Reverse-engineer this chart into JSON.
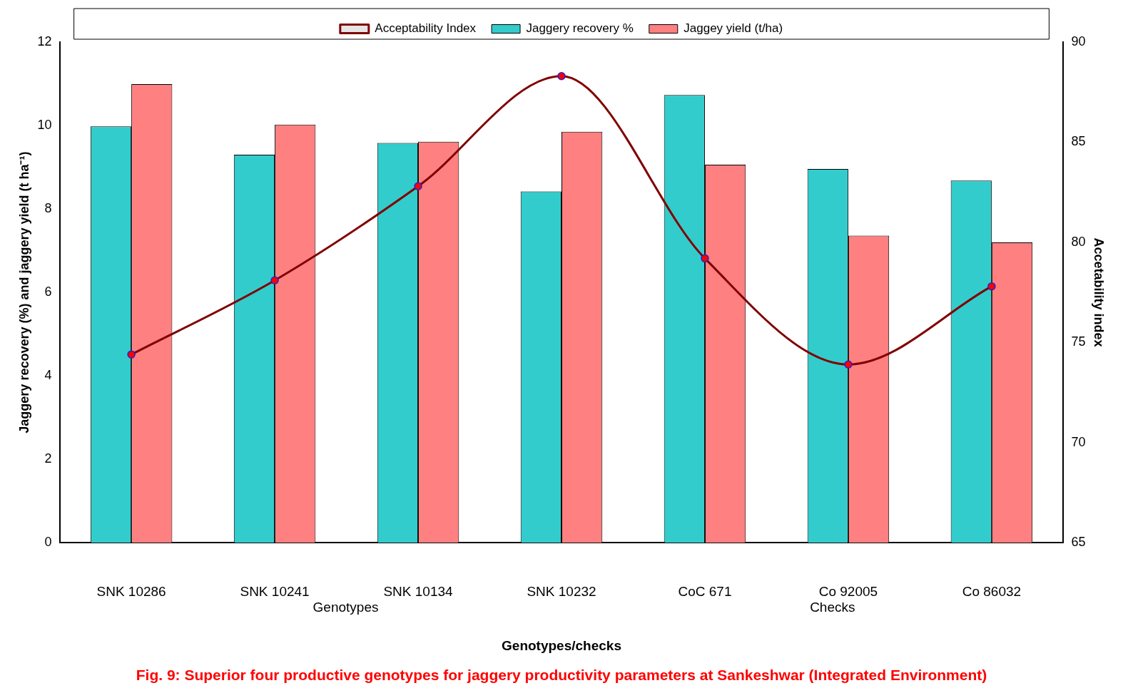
{
  "chart_data": {
    "type": "bar",
    "title": "Fig. 9: Superior four productive genotypes for jaggery productivity parameters at Sankeshwar (Integrated Environment)",
    "xlabel": "Genotypes/checks",
    "ylabel": "Jaggery recovery (%) and jaggery yield (t ha⁻¹)",
    "y2label": "Accetability index",
    "categories": [
      "SNK 10286",
      "SNK 10241",
      "SNK 10134",
      "SNK 10232",
      "CoC 671",
      "Co 92005",
      "Co 86032"
    ],
    "series": [
      {
        "name": "Jaggery recovery %",
        "color": "#33cccc",
        "values": [
          9.98,
          9.3,
          9.58,
          8.42,
          10.73,
          8.96,
          8.68
        ]
      },
      {
        "name": "Jaggey yield (t/ha)",
        "color": "#ff8080",
        "values": [
          10.99,
          10.02,
          9.61,
          9.85,
          9.06,
          7.36,
          7.2
        ]
      },
      {
        "name": "Acceptability Index",
        "type": "line",
        "axis": "y2",
        "color": "#800000",
        "marker": "circle",
        "values": [
          74.4,
          78.1,
          82.8,
          88.3,
          79.2,
          73.9,
          77.8
        ]
      }
    ],
    "annotations": [
      "Genotypes",
      "Checks"
    ],
    "ylim": [
      0,
      12
    ],
    "yticks": [
      0,
      2,
      4,
      6,
      8,
      10,
      12
    ],
    "y2lim": [
      65,
      90
    ],
    "y2ticks": [
      65,
      70,
      75,
      80,
      85,
      90
    ],
    "grid": false,
    "legend": "top"
  }
}
